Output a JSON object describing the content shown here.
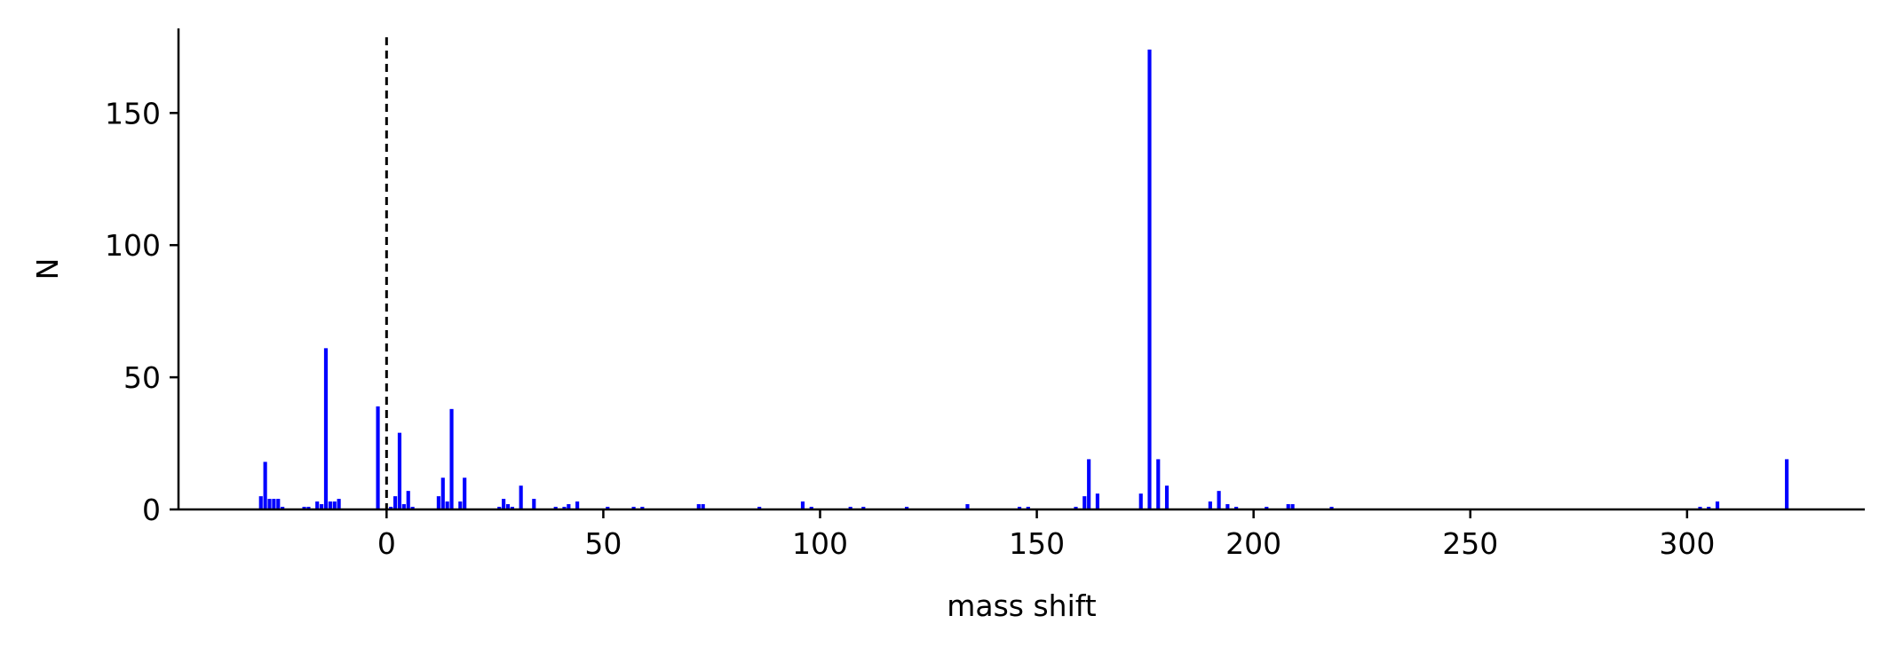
{
  "chart_data": {
    "type": "bar",
    "title": "",
    "xlabel": "mass shift",
    "ylabel": "N",
    "xlim": [
      -48,
      341
    ],
    "ylim": [
      0,
      182
    ],
    "xticks": [
      0,
      50,
      100,
      150,
      200,
      250,
      300
    ],
    "yticks": [
      0,
      50,
      100,
      150
    ],
    "bar_color": "#0000ff",
    "reference_line": {
      "x": 0,
      "style": "dashed",
      "color": "#000000"
    },
    "grid": false,
    "bars": [
      {
        "x": -29,
        "y": 5
      },
      {
        "x": -28,
        "y": 18
      },
      {
        "x": -27,
        "y": 4
      },
      {
        "x": -26,
        "y": 4
      },
      {
        "x": -25,
        "y": 4
      },
      {
        "x": -24,
        "y": 1
      },
      {
        "x": -19,
        "y": 1
      },
      {
        "x": -18,
        "y": 1
      },
      {
        "x": -16,
        "y": 3
      },
      {
        "x": -15,
        "y": 2
      },
      {
        "x": -14,
        "y": 61
      },
      {
        "x": -13,
        "y": 3
      },
      {
        "x": -12,
        "y": 3
      },
      {
        "x": -11,
        "y": 4
      },
      {
        "x": -2,
        "y": 39
      },
      {
        "x": 1,
        "y": 1
      },
      {
        "x": 2,
        "y": 5
      },
      {
        "x": 3,
        "y": 29
      },
      {
        "x": 4,
        "y": 2
      },
      {
        "x": 5,
        "y": 7
      },
      {
        "x": 6,
        "y": 1
      },
      {
        "x": 12,
        "y": 5
      },
      {
        "x": 13,
        "y": 12
      },
      {
        "x": 14,
        "y": 3
      },
      {
        "x": 15,
        "y": 38
      },
      {
        "x": 17,
        "y": 3
      },
      {
        "x": 18,
        "y": 12
      },
      {
        "x": 26,
        "y": 1
      },
      {
        "x": 27,
        "y": 4
      },
      {
        "x": 28,
        "y": 2
      },
      {
        "x": 29,
        "y": 1
      },
      {
        "x": 31,
        "y": 9
      },
      {
        "x": 34,
        "y": 4
      },
      {
        "x": 39,
        "y": 1
      },
      {
        "x": 41,
        "y": 1
      },
      {
        "x": 42,
        "y": 2
      },
      {
        "x": 44,
        "y": 3
      },
      {
        "x": 51,
        "y": 1
      },
      {
        "x": 57,
        "y": 1
      },
      {
        "x": 59,
        "y": 1
      },
      {
        "x": 72,
        "y": 2
      },
      {
        "x": 73,
        "y": 2
      },
      {
        "x": 86,
        "y": 1
      },
      {
        "x": 96,
        "y": 3
      },
      {
        "x": 98,
        "y": 1
      },
      {
        "x": 107,
        "y": 1
      },
      {
        "x": 110,
        "y": 1
      },
      {
        "x": 120,
        "y": 1
      },
      {
        "x": 134,
        "y": 2
      },
      {
        "x": 146,
        "y": 1
      },
      {
        "x": 148,
        "y": 1
      },
      {
        "x": 159,
        "y": 1
      },
      {
        "x": 161,
        "y": 5
      },
      {
        "x": 162,
        "y": 19
      },
      {
        "x": 164,
        "y": 6
      },
      {
        "x": 174,
        "y": 6
      },
      {
        "x": 176,
        "y": 174
      },
      {
        "x": 178,
        "y": 19
      },
      {
        "x": 180,
        "y": 9
      },
      {
        "x": 190,
        "y": 3
      },
      {
        "x": 192,
        "y": 7
      },
      {
        "x": 194,
        "y": 2
      },
      {
        "x": 196,
        "y": 1
      },
      {
        "x": 203,
        "y": 1
      },
      {
        "x": 208,
        "y": 2
      },
      {
        "x": 209,
        "y": 2
      },
      {
        "x": 218,
        "y": 1
      },
      {
        "x": 303,
        "y": 1
      },
      {
        "x": 305,
        "y": 1
      },
      {
        "x": 307,
        "y": 3
      },
      {
        "x": 323,
        "y": 19
      }
    ]
  }
}
